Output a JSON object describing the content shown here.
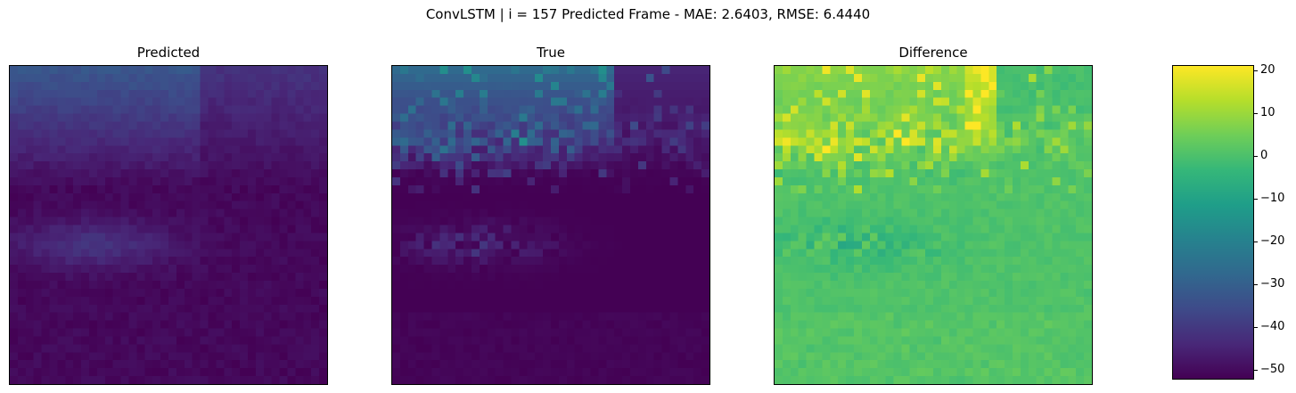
{
  "suptitle": "ConvLSTM | i = 157 Predicted Frame - MAE: 2.6403, RMSE: 6.4440",
  "chart_data": {
    "type": "heatmap",
    "grid": [
      40,
      40
    ],
    "colormap": "viridis",
    "panels": [
      {
        "id": "predicted",
        "title": "Predicted",
        "vmin": -52,
        "vmax": 21
      },
      {
        "id": "true",
        "title": "True",
        "vmin": -52,
        "vmax": 21
      },
      {
        "id": "difference",
        "title": "Difference",
        "vmin": -52,
        "vmax": 21
      }
    ],
    "colorbar": {
      "vmin": -52,
      "vmax": 21,
      "ticks": [
        20,
        10,
        0,
        -10,
        -20,
        -30,
        -40,
        -50
      ],
      "tick_labels": [
        "20",
        "10",
        "0",
        "−10",
        "−20",
        "−30",
        "−40",
        "−50"
      ]
    }
  }
}
